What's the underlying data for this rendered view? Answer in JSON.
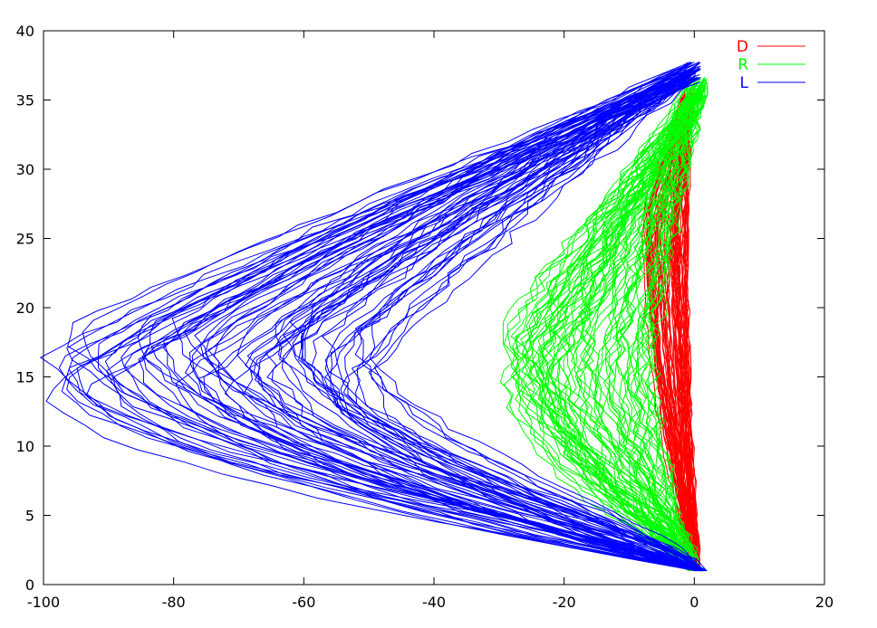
{
  "chart_data": {
    "type": "line",
    "title": "",
    "xlabel": "",
    "ylabel": "",
    "xlim": [
      -100,
      20
    ],
    "ylim": [
      0,
      40
    ],
    "xticks": [
      -100,
      -80,
      -60,
      -40,
      -20,
      0,
      20
    ],
    "yticks": [
      0,
      5,
      10,
      15,
      20,
      25,
      30,
      35,
      40
    ],
    "grid": false,
    "legend_position": "top-right",
    "series": [
      {
        "name": "D",
        "color": "#ff0000",
        "trace_count": 70,
        "description_points": {
          "start": [
            0,
            1
          ],
          "apex_x_range": [
            -8,
            -1
          ],
          "apex_y_range": [
            23,
            28
          ],
          "end": [
            -1,
            35
          ]
        },
        "mean_path": [
          [
            0,
            1
          ],
          [
            -1,
            5
          ],
          [
            -2,
            10
          ],
          [
            -3,
            15
          ],
          [
            -4,
            20
          ],
          [
            -5,
            25
          ],
          [
            -4,
            30
          ],
          [
            -1,
            35
          ]
        ]
      },
      {
        "name": "R",
        "color": "#00ff00",
        "trace_count": 70,
        "description_points": {
          "start": [
            0,
            1
          ],
          "apex_x_range": [
            -29,
            -6
          ],
          "apex_y_range": [
            14,
            19
          ],
          "end": [
            1,
            36
          ]
        },
        "mean_path": [
          [
            0,
            1
          ],
          [
            -3,
            5
          ],
          [
            -8,
            10
          ],
          [
            -14,
            15
          ],
          [
            -15,
            18
          ],
          [
            -14,
            22
          ],
          [
            -12,
            27
          ],
          [
            -7,
            31
          ],
          [
            1,
            36
          ]
        ]
      },
      {
        "name": "L",
        "color": "#0000ff",
        "trace_count": 70,
        "description_points": {
          "start": [
            1,
            1
          ],
          "apex_x_range": [
            -100,
            -46
          ],
          "apex_y_range": [
            14,
            19
          ],
          "end": [
            0,
            37
          ]
        },
        "mean_path": [
          [
            1,
            1
          ],
          [
            -8,
            4
          ],
          [
            -30,
            9
          ],
          [
            -60,
            13
          ],
          [
            -75,
            16
          ],
          [
            -60,
            20
          ],
          [
            -40,
            25
          ],
          [
            -18,
            31
          ],
          [
            0,
            37
          ]
        ]
      }
    ]
  }
}
